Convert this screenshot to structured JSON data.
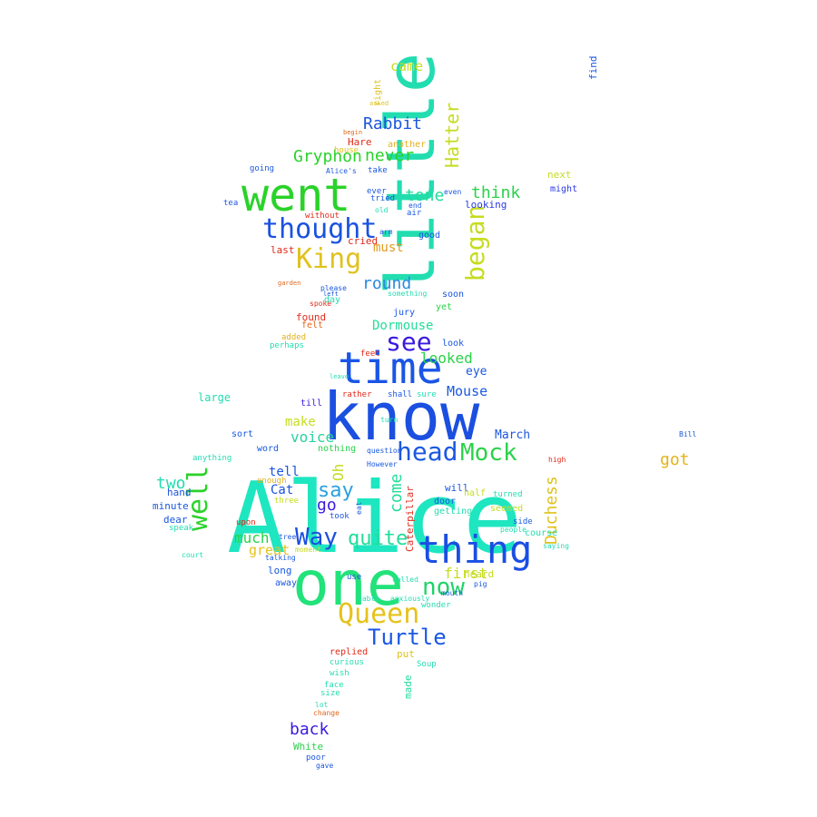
{
  "words": [
    {
      "text": "Alice",
      "color": "#1ee6c0"
    },
    {
      "text": "know",
      "color": "#1a4fe0"
    },
    {
      "text": "little",
      "color": "#22ddb0"
    },
    {
      "text": "one",
      "color": "#22e27a"
    },
    {
      "text": "went",
      "color": "#2ad22a"
    },
    {
      "text": "time",
      "color": "#1a55e6"
    },
    {
      "text": "thing",
      "color": "#1a4ee4"
    },
    {
      "text": "thought",
      "color": "#1a52e0"
    },
    {
      "text": "Queen",
      "color": "#e6c21a"
    },
    {
      "text": "King",
      "color": "#e0c21e"
    },
    {
      "text": "began",
      "color": "#c6dc20"
    },
    {
      "text": "head",
      "color": "#1a58e0"
    },
    {
      "text": "Mock",
      "color": "#2ad24a"
    },
    {
      "text": "well",
      "color": "#2ad22a"
    },
    {
      "text": "Way",
      "color": "#1a4ee0"
    },
    {
      "text": "see",
      "color": "#3a1ae0"
    },
    {
      "text": "now",
      "color": "#20d26a"
    },
    {
      "text": "Turtle",
      "color": "#1a58e6"
    },
    {
      "text": "Hatter",
      "color": "#c6dc20"
    },
    {
      "text": "Gryphon",
      "color": "#2ad22a"
    },
    {
      "text": "Rabbit",
      "color": "#1a55e0"
    },
    {
      "text": "quite",
      "color": "#22dd9a"
    },
    {
      "text": "say",
      "color": "#2aa0e0"
    },
    {
      "text": "think",
      "color": "#2ad24a"
    },
    {
      "text": "round",
      "color": "#2a88e0"
    },
    {
      "text": "Duchess",
      "color": "#e0c21e"
    },
    {
      "text": "come",
      "color": "#22dd9a"
    },
    {
      "text": "got",
      "color": "#e6b21a"
    },
    {
      "text": "back",
      "color": "#3a1ae0"
    },
    {
      "text": "never",
      "color": "#2ad22a"
    },
    {
      "text": "looked",
      "color": "#2ad24a"
    },
    {
      "text": "much",
      "color": "#2ad24a"
    },
    {
      "text": "voice",
      "color": "#2ad2a0"
    },
    {
      "text": "two",
      "color": "#22ddb0"
    },
    {
      "text": "go",
      "color": "#3a1ae0"
    },
    {
      "text": "Mouse",
      "color": "#1a58e0"
    },
    {
      "text": "tone",
      "color": "#22dd9a"
    },
    {
      "text": "came",
      "color": "#c6dc20"
    },
    {
      "text": "first",
      "color": "#c6dc20"
    },
    {
      "text": "great",
      "color": "#e6c21a"
    },
    {
      "text": "must",
      "color": "#e09a1e"
    },
    {
      "text": "make",
      "color": "#c6dc20"
    },
    {
      "text": "Dormouse",
      "color": "#22dd9a"
    },
    {
      "text": "tell",
      "color": "#1a55e0"
    },
    {
      "text": "Cat",
      "color": "#1a52e0"
    },
    {
      "text": "March",
      "color": "#1a58e0"
    },
    {
      "text": "Oh",
      "color": "#c6dc20"
    },
    {
      "text": "eye",
      "color": "#1a58e0"
    },
    {
      "text": "last",
      "color": "#e02a1a"
    },
    {
      "text": "large",
      "color": "#22ddb0"
    },
    {
      "text": "heard",
      "color": "#c6dc20"
    },
    {
      "text": "Hare",
      "color": "#e02a1a"
    },
    {
      "text": "next",
      "color": "#c6dc20"
    },
    {
      "text": "might",
      "color": "#2a3ae0"
    },
    {
      "text": "going",
      "color": "#1a58e0"
    },
    {
      "text": "looking",
      "color": "#2a3ae0"
    },
    {
      "text": "found",
      "color": "#e02a1a"
    },
    {
      "text": "felt",
      "color": "#e0681e"
    },
    {
      "text": "added",
      "color": "#e0b21e"
    },
    {
      "text": "perhaps",
      "color": "#22ddb0"
    },
    {
      "text": "replied",
      "color": "#e02a1a"
    },
    {
      "text": "White",
      "color": "#2ad24a"
    },
    {
      "text": "poor",
      "color": "#1a58e0"
    },
    {
      "text": "gave",
      "color": "#1a58e0"
    },
    {
      "text": "curious",
      "color": "#22ddb0"
    },
    {
      "text": "wish",
      "color": "#22ddb0"
    },
    {
      "text": "made",
      "color": "#22dd9a"
    },
    {
      "text": "put",
      "color": "#e0c21e"
    },
    {
      "text": "Soup",
      "color": "#22ddb0"
    },
    {
      "text": "minute",
      "color": "#1a58e0"
    },
    {
      "text": "dear",
      "color": "#1a58e0"
    },
    {
      "text": "hand",
      "color": "#1a52e0"
    },
    {
      "text": "anything",
      "color": "#22ddb0"
    },
    {
      "text": "speak",
      "color": "#22ddb0"
    },
    {
      "text": "court",
      "color": "#22ddb0"
    },
    {
      "text": "upon",
      "color": "#e02a1a"
    },
    {
      "text": "long",
      "color": "#1a58e0"
    },
    {
      "text": "moment",
      "color": "#c6dc20"
    },
    {
      "text": "away",
      "color": "#1a58e0"
    },
    {
      "text": "three",
      "color": "#c6dc20"
    },
    {
      "text": "word",
      "color": "#1a58e0"
    },
    {
      "text": "enough",
      "color": "#e0b21e"
    },
    {
      "text": "till",
      "color": "#3a1ae0"
    },
    {
      "text": "day",
      "color": "#22ddb0"
    },
    {
      "text": "please",
      "color": "#1a58e0"
    },
    {
      "text": "spoke",
      "color": "#e02a1a"
    },
    {
      "text": "cried",
      "color": "#e02a1a"
    },
    {
      "text": "without",
      "color": "#e02a1a"
    },
    {
      "text": "tried",
      "color": "#1a58e0"
    },
    {
      "text": "ever",
      "color": "#1a58e0"
    },
    {
      "text": "take",
      "color": "#1a58e0"
    },
    {
      "text": "another",
      "color": "#e0b21e"
    },
    {
      "text": "right",
      "color": "#e0c21e"
    },
    {
      "text": "house",
      "color": "#e0c21e"
    },
    {
      "text": "tea",
      "color": "#1a58e0"
    },
    {
      "text": "Alice's",
      "color": "#1a58e0"
    },
    {
      "text": "rather",
      "color": "#e02a1a"
    },
    {
      "text": "shall",
      "color": "#1a58e0"
    },
    {
      "text": "sure",
      "color": "#22ddb0"
    },
    {
      "text": "jury",
      "color": "#1a58e0"
    },
    {
      "text": "soon",
      "color": "#1a58e0"
    },
    {
      "text": "yet",
      "color": "#2ad24a"
    },
    {
      "text": "look",
      "color": "#1a58e0"
    },
    {
      "text": "good",
      "color": "#1a58e0"
    },
    {
      "text": "air",
      "color": "#1a58e0"
    },
    {
      "text": "old",
      "color": "#22ddb0"
    },
    {
      "text": "end",
      "color": "#1a58e0"
    },
    {
      "text": "nothing",
      "color": "#2ad24a"
    },
    {
      "text": "question",
      "color": "#1a58e0"
    },
    {
      "text": "However",
      "color": "#1a58e0"
    },
    {
      "text": "will",
      "color": "#1a58e0"
    },
    {
      "text": "door",
      "color": "#1a58e0"
    },
    {
      "text": "getting",
      "color": "#22ddb0"
    },
    {
      "text": "seemed",
      "color": "#c6dc20"
    },
    {
      "text": "course",
      "color": "#22ddb0"
    },
    {
      "text": "side",
      "color": "#1a58e0"
    },
    {
      "text": "turned",
      "color": "#22ddb0"
    },
    {
      "text": "saying",
      "color": "#22ddb0"
    },
    {
      "text": "took",
      "color": "#1a58e0"
    },
    {
      "text": "eat",
      "color": "#1a58e0"
    },
    {
      "text": "Caterpillar",
      "color": "#e02a1a"
    },
    {
      "text": "use",
      "color": "#1a58e0"
    },
    {
      "text": "called",
      "color": "#22ddb0"
    },
    {
      "text": "table",
      "color": "#22ddb0"
    },
    {
      "text": "anxiously",
      "color": "#22ddb0"
    },
    {
      "text": "wonder",
      "color": "#22ddb0"
    },
    {
      "text": "mouth",
      "color": "#1a58e0"
    },
    {
      "text": "pig",
      "color": "#1a58e0"
    },
    {
      "text": "size",
      "color": "#22ddb0"
    },
    {
      "text": "face",
      "color": "#22ddb0"
    },
    {
      "text": "change",
      "color": "#e0681e"
    },
    {
      "text": "lot",
      "color": "#22ddb0"
    },
    {
      "text": "half",
      "color": "#c6dc20"
    },
    {
      "text": "feet",
      "color": "#e02a1a"
    },
    {
      "text": "high",
      "color": "#e02a1a"
    },
    {
      "text": "find",
      "color": "#1a58e0"
    },
    {
      "text": "turn",
      "color": "#22ddb0"
    },
    {
      "text": "leave",
      "color": "#22ddb0"
    },
    {
      "text": "arm",
      "color": "#1a58e0"
    },
    {
      "text": "garden",
      "color": "#e0681e"
    },
    {
      "text": "even",
      "color": "#1a58e0"
    },
    {
      "text": "asked",
      "color": "#e0c21e"
    },
    {
      "text": "begin",
      "color": "#e0681e"
    },
    {
      "text": "left",
      "color": "#1a58e0"
    },
    {
      "text": "people",
      "color": "#22ddb0"
    },
    {
      "text": "talking",
      "color": "#1a58e0"
    },
    {
      "text": "tree",
      "color": "#1a58e0"
    },
    {
      "text": "sort",
      "color": "#1a58e0"
    },
    {
      "text": "something",
      "color": "#22ddb0"
    },
    {
      "text": "Bill",
      "color": "#1a58e0"
    }
  ]
}
